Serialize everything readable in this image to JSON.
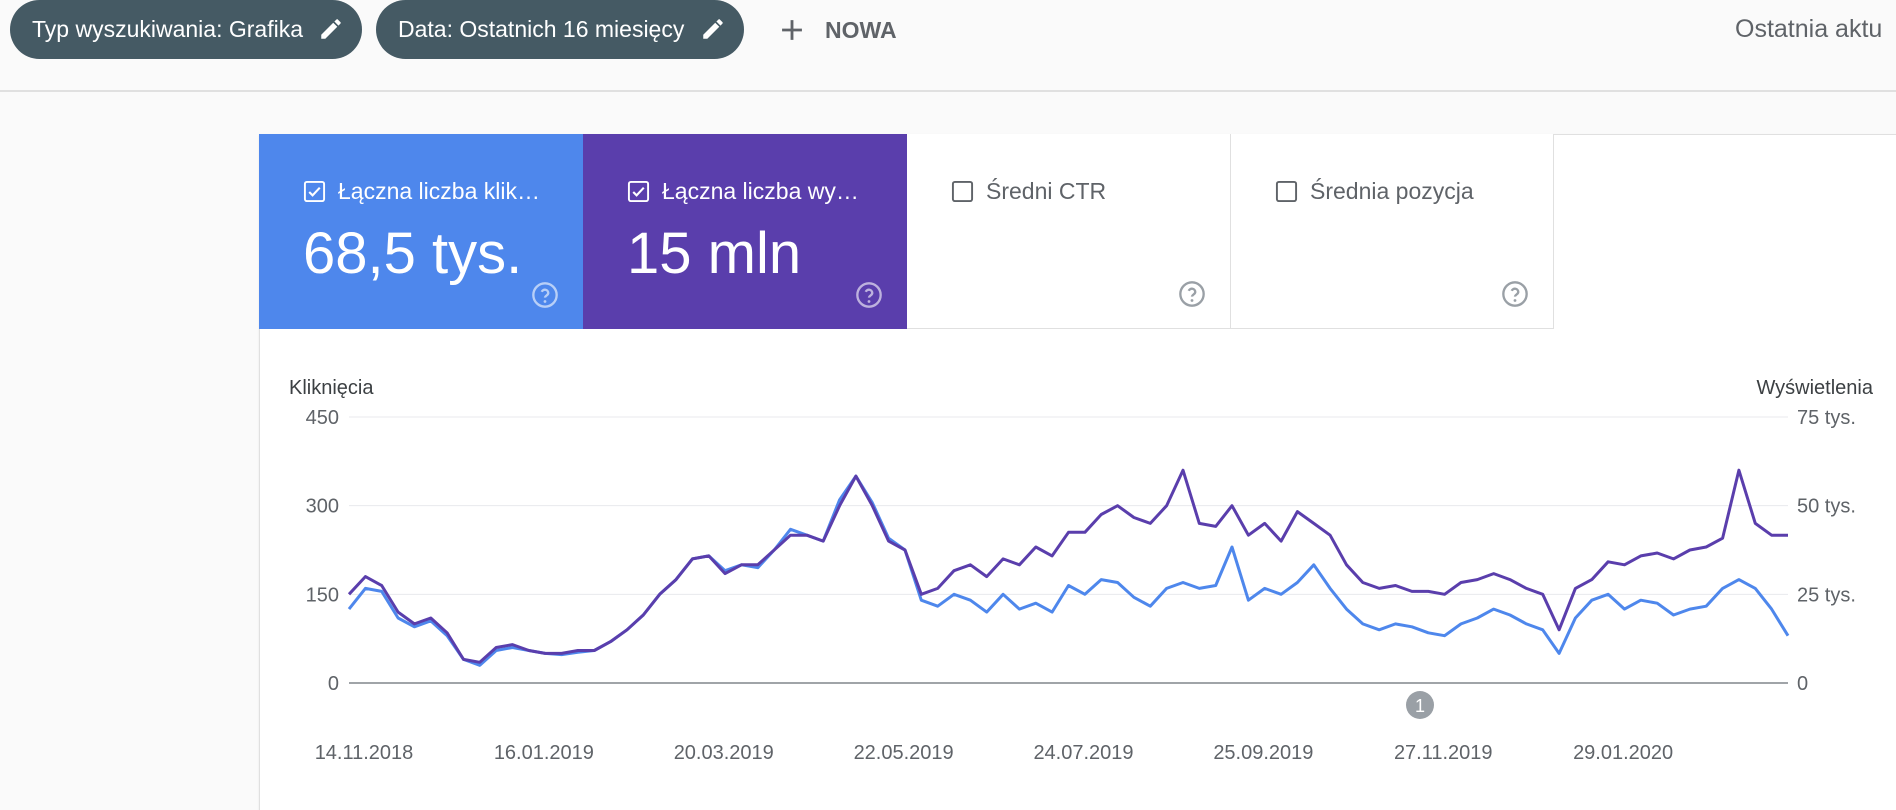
{
  "filters": {
    "search_type": "Typ wyszukiwania: Grafika",
    "date": "Data: Ostatnich 16 miesięcy",
    "new_label": "NOWA"
  },
  "last_update": "Ostatnia aktu",
  "metrics": [
    {
      "label": "Łączna liczba klik…",
      "value": "68,5 tys.",
      "checked": true,
      "color": "#4e87ec"
    },
    {
      "label": "Łączna liczba wy…",
      "value": "15 mln",
      "checked": true,
      "color": "#5a3eac"
    },
    {
      "label": "Średni CTR",
      "value": "",
      "checked": false
    },
    {
      "label": "Średnia pozycja",
      "value": "",
      "checked": false
    }
  ],
  "chart_data": {
    "type": "line",
    "x": [
      "14.11.2018",
      "16.01.2019",
      "20.03.2019",
      "22.05.2019",
      "24.07.2019",
      "25.09.2019",
      "27.11.2019",
      "29.01.2020"
    ],
    "x_ticks": [
      "14.11.2018",
      "16.01.2019",
      "20.03.2019",
      "22.05.2019",
      "24.07.2019",
      "25.09.2019",
      "27.11.2019",
      "29.01.2020"
    ],
    "left_axis": {
      "title": "Kliknięcia",
      "ticks": [
        "0",
        "150",
        "300",
        "450"
      ],
      "ylim": [
        0,
        450
      ]
    },
    "right_axis": {
      "title": "Wyświetlenia",
      "ticks": [
        "0",
        "25 tys.",
        "50 tys.",
        "75 tys."
      ],
      "ylim": [
        0,
        75000
      ]
    },
    "series": [
      {
        "axis": "left",
        "color": "#4e87ec",
        "values": [
          [
            0,
            125
          ],
          [
            4,
            160
          ],
          [
            8,
            155
          ],
          [
            12,
            110
          ],
          [
            16,
            95
          ],
          [
            20,
            105
          ],
          [
            24,
            80
          ],
          [
            28,
            40
          ],
          [
            32,
            30
          ],
          [
            36,
            55
          ],
          [
            40,
            60
          ],
          [
            44,
            55
          ],
          [
            48,
            50
          ],
          [
            52,
            48
          ],
          [
            56,
            52
          ],
          [
            60,
            55
          ],
          [
            64,
            70
          ],
          [
            68,
            90
          ],
          [
            72,
            115
          ],
          [
            76,
            150
          ],
          [
            80,
            175
          ],
          [
            84,
            210
          ],
          [
            88,
            215
          ],
          [
            92,
            190
          ],
          [
            96,
            200
          ],
          [
            100,
            195
          ],
          [
            104,
            225
          ],
          [
            108,
            260
          ],
          [
            112,
            250
          ],
          [
            116,
            240
          ],
          [
            120,
            310
          ],
          [
            124,
            350
          ],
          [
            128,
            305
          ],
          [
            132,
            245
          ],
          [
            136,
            225
          ],
          [
            140,
            140
          ],
          [
            144,
            130
          ],
          [
            148,
            150
          ],
          [
            152,
            140
          ],
          [
            156,
            120
          ],
          [
            160,
            150
          ],
          [
            164,
            125
          ],
          [
            168,
            135
          ],
          [
            172,
            120
          ],
          [
            176,
            165
          ],
          [
            180,
            150
          ],
          [
            184,
            175
          ],
          [
            188,
            170
          ],
          [
            192,
            145
          ],
          [
            196,
            130
          ],
          [
            200,
            160
          ],
          [
            204,
            170
          ],
          [
            208,
            160
          ],
          [
            212,
            165
          ],
          [
            216,
            230
          ],
          [
            220,
            140
          ],
          [
            224,
            160
          ],
          [
            228,
            150
          ],
          [
            232,
            170
          ],
          [
            236,
            200
          ],
          [
            240,
            160
          ],
          [
            244,
            125
          ],
          [
            248,
            100
          ],
          [
            252,
            90
          ],
          [
            256,
            100
          ],
          [
            260,
            95
          ],
          [
            264,
            85
          ],
          [
            268,
            80
          ],
          [
            272,
            100
          ],
          [
            276,
            110
          ],
          [
            280,
            125
          ],
          [
            284,
            115
          ],
          [
            288,
            100
          ],
          [
            292,
            90
          ],
          [
            296,
            50
          ],
          [
            300,
            110
          ],
          [
            304,
            140
          ],
          [
            308,
            150
          ],
          [
            312,
            125
          ],
          [
            316,
            140
          ],
          [
            320,
            135
          ],
          [
            324,
            115
          ],
          [
            328,
            125
          ],
          [
            332,
            130
          ],
          [
            336,
            160
          ],
          [
            340,
            175
          ],
          [
            344,
            160
          ],
          [
            348,
            125
          ],
          [
            352,
            80
          ]
        ]
      },
      {
        "axis": "right",
        "color": "#5a3eac",
        "values": [
          [
            0,
            25000
          ],
          [
            4,
            30000
          ],
          [
            8,
            27500
          ],
          [
            12,
            20000
          ],
          [
            16,
            16667
          ],
          [
            20,
            18333
          ],
          [
            24,
            14167
          ],
          [
            28,
            6667
          ],
          [
            32,
            5833
          ],
          [
            36,
            10000
          ],
          [
            40,
            10833
          ],
          [
            44,
            9167
          ],
          [
            48,
            8333
          ],
          [
            52,
            8333
          ],
          [
            56,
            9167
          ],
          [
            60,
            9167
          ],
          [
            64,
            11667
          ],
          [
            68,
            15000
          ],
          [
            72,
            19167
          ],
          [
            76,
            25000
          ],
          [
            80,
            29167
          ],
          [
            84,
            35000
          ],
          [
            88,
            35833
          ],
          [
            92,
            30833
          ],
          [
            96,
            33333
          ],
          [
            100,
            33333
          ],
          [
            104,
            37500
          ],
          [
            108,
            41667
          ],
          [
            112,
            41667
          ],
          [
            116,
            40000
          ],
          [
            120,
            50000
          ],
          [
            124,
            58333
          ],
          [
            128,
            50000
          ],
          [
            132,
            40000
          ],
          [
            136,
            37500
          ],
          [
            140,
            25000
          ],
          [
            144,
            26667
          ],
          [
            148,
            31667
          ],
          [
            152,
            33333
          ],
          [
            156,
            30000
          ],
          [
            160,
            35000
          ],
          [
            164,
            33333
          ],
          [
            168,
            38333
          ],
          [
            172,
            35833
          ],
          [
            176,
            42500
          ],
          [
            180,
            42500
          ],
          [
            184,
            47500
          ],
          [
            188,
            50000
          ],
          [
            192,
            46667
          ],
          [
            196,
            45000
          ],
          [
            200,
            50000
          ],
          [
            204,
            60000
          ],
          [
            208,
            45000
          ],
          [
            212,
            44167
          ],
          [
            216,
            50000
          ],
          [
            220,
            41667
          ],
          [
            224,
            45000
          ],
          [
            228,
            40000
          ],
          [
            232,
            48333
          ],
          [
            236,
            45000
          ],
          [
            240,
            41667
          ],
          [
            244,
            33333
          ],
          [
            248,
            28333
          ],
          [
            252,
            26667
          ],
          [
            256,
            27500
          ],
          [
            260,
            25833
          ],
          [
            264,
            25833
          ],
          [
            268,
            25000
          ],
          [
            272,
            28333
          ],
          [
            276,
            29167
          ],
          [
            280,
            30833
          ],
          [
            284,
            29167
          ],
          [
            288,
            26667
          ],
          [
            292,
            25000
          ],
          [
            296,
            15000
          ],
          [
            300,
            26667
          ],
          [
            304,
            29167
          ],
          [
            308,
            34167
          ],
          [
            312,
            33333
          ],
          [
            316,
            35833
          ],
          [
            320,
            36667
          ],
          [
            324,
            35000
          ],
          [
            328,
            37500
          ],
          [
            332,
            38333
          ],
          [
            336,
            40833
          ],
          [
            340,
            60000
          ],
          [
            344,
            45000
          ],
          [
            348,
            41667
          ],
          [
            352,
            41667
          ]
        ]
      }
    ],
    "annotations": [
      "1"
    ],
    "grid": true
  }
}
